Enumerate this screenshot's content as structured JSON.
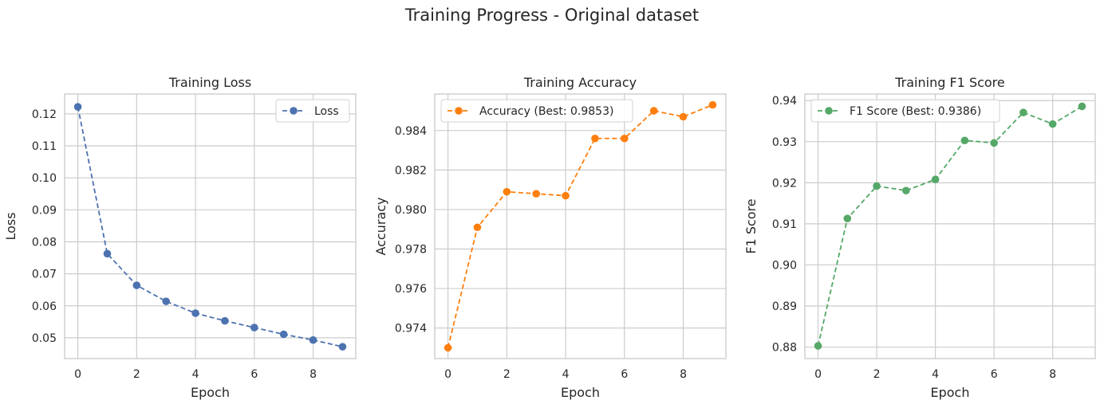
{
  "figure": {
    "suptitle": "Training Progress - Original dataset"
  },
  "chart_data": [
    {
      "type": "line",
      "title": "Training Loss",
      "xlabel": "Epoch",
      "ylabel": "Loss",
      "x": [
        0,
        1,
        2,
        3,
        4,
        5,
        6,
        7,
        8,
        9
      ],
      "xticks": [
        0,
        2,
        4,
        6,
        8
      ],
      "xlim": [
        -0.45,
        9.45
      ],
      "yticks": [
        0.05,
        0.06,
        0.07,
        0.08,
        0.09,
        0.1,
        0.11,
        0.12
      ],
      "ytick_labels": [
        "0.05",
        "0.06",
        "0.07",
        "0.08",
        "0.09",
        "0.10",
        "0.11",
        "0.12"
      ],
      "ylim": [
        0.0435,
        0.1262
      ],
      "grid": true,
      "legend_position": "upper right",
      "series": [
        {
          "name": "Loss",
          "color": "#4c72b0",
          "linestyle": "dashed",
          "marker": "circle",
          "values": [
            0.1222,
            0.0763,
            0.0664,
            0.0614,
            0.0577,
            0.0553,
            0.0532,
            0.0511,
            0.0493,
            0.0472
          ]
        }
      ]
    },
    {
      "type": "line",
      "title": "Training Accuracy",
      "xlabel": "Epoch",
      "ylabel": "Accuracy",
      "x": [
        0,
        1,
        2,
        3,
        4,
        5,
        6,
        7,
        8,
        9
      ],
      "xticks": [
        0,
        2,
        4,
        6,
        8
      ],
      "xlim": [
        -0.45,
        9.45
      ],
      "yticks": [
        0.974,
        0.976,
        0.978,
        0.98,
        0.982,
        0.984
      ],
      "ytick_labels": [
        "0.974",
        "0.976",
        "0.978",
        "0.980",
        "0.982",
        "0.984"
      ],
      "ylim": [
        0.97245,
        0.98585
      ],
      "grid": true,
      "legend_position": "upper left",
      "series": [
        {
          "name": "Accuracy (Best: 0.9853)",
          "color": "#ff7f0e",
          "linestyle": "dashed",
          "marker": "circle",
          "values": [
            0.973,
            0.9791,
            0.9809,
            0.9808,
            0.9807,
            0.9836,
            0.9836,
            0.985,
            0.9847,
            0.9853
          ]
        }
      ]
    },
    {
      "type": "line",
      "title": "Training F1 Score",
      "xlabel": "Epoch",
      "ylabel": "F1 Score",
      "x": [
        0,
        1,
        2,
        3,
        4,
        5,
        6,
        7,
        8,
        9
      ],
      "xticks": [
        0,
        2,
        4,
        6,
        8
      ],
      "xlim": [
        -0.45,
        9.45
      ],
      "yticks": [
        0.88,
        0.89,
        0.9,
        0.91,
        0.92,
        0.93,
        0.94
      ],
      "ytick_labels": [
        "0.88",
        "0.89",
        "0.90",
        "0.91",
        "0.92",
        "0.93",
        "0.94"
      ],
      "ylim": [
        0.8772,
        0.9416
      ],
      "grid": true,
      "legend_position": "upper left",
      "series": [
        {
          "name": "F1 Score (Best: 0.9386)",
          "color": "#55a868",
          "linestyle": "dashed",
          "marker": "circle",
          "values": [
            0.8803,
            0.9113,
            0.9192,
            0.9181,
            0.9208,
            0.9303,
            0.9297,
            0.9371,
            0.9343,
            0.9386
          ]
        }
      ]
    }
  ]
}
